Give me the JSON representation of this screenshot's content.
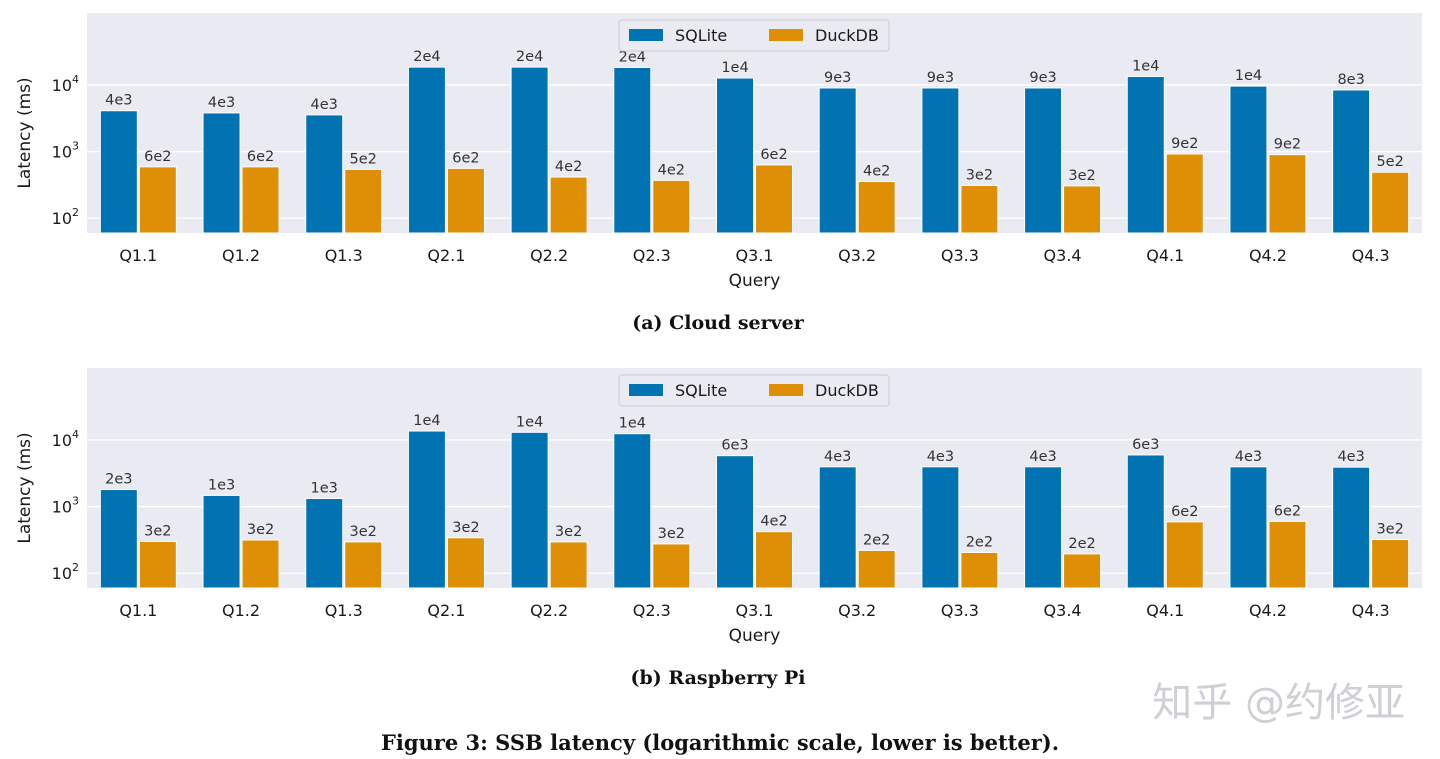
{
  "figure_caption": "Figure 3: SSB latency (logarithmic scale, lower is better).",
  "watermark": "知乎 @约修亚",
  "colors": {
    "sqlite": "#0173b2",
    "duckdb": "#de8f05",
    "plot_bg": "#eaeaf2"
  },
  "chart_data": [
    {
      "type": "bar",
      "caption": "(a) Cloud server",
      "xlabel": "Query",
      "ylabel": "Latency (ms)",
      "yscale": "log",
      "ylim": [
        60,
        120000
      ],
      "yticks": [
        100,
        1000,
        10000
      ],
      "ytick_labels": [
        {
          "base": "10",
          "exp": "2"
        },
        {
          "base": "10",
          "exp": "3"
        },
        {
          "base": "10",
          "exp": "4"
        }
      ],
      "grid": true,
      "legend": "top-center",
      "categories": [
        "Q1.1",
        "Q1.2",
        "Q1.3",
        "Q2.1",
        "Q2.2",
        "Q2.3",
        "Q3.1",
        "Q3.2",
        "Q3.3",
        "Q3.4",
        "Q4.1",
        "Q4.2",
        "Q4.3"
      ],
      "series": [
        {
          "name": "SQLite",
          "values": [
            4100,
            3800,
            3550,
            18500,
            18500,
            18300,
            12700,
            9000,
            9000,
            9000,
            13400,
            9600,
            8400
          ],
          "labels": [
            "4e3",
            "4e3",
            "4e3",
            "2e4",
            "2e4",
            "2e4",
            "1e4",
            "9e3",
            "9e3",
            "9e3",
            "1e4",
            "1e4",
            "8e3"
          ]
        },
        {
          "name": "DuckDB",
          "values": [
            590,
            590,
            540,
            560,
            415,
            370,
            630,
            355,
            310,
            305,
            920,
            900,
            490
          ],
          "labels": [
            "6e2",
            "6e2",
            "5e2",
            "6e2",
            "4e2",
            "4e2",
            "6e2",
            "4e2",
            "3e2",
            "3e2",
            "9e2",
            "9e2",
            "5e2"
          ]
        }
      ]
    },
    {
      "type": "bar",
      "caption": "(b) Raspberry Pi",
      "xlabel": "Query",
      "ylabel": "Latency (ms)",
      "yscale": "log",
      "ylim": [
        60,
        120000
      ],
      "yticks": [
        100,
        1000,
        10000
      ],
      "ytick_labels": [
        {
          "base": "10",
          "exp": "2"
        },
        {
          "base": "10",
          "exp": "3"
        },
        {
          "base": "10",
          "exp": "4"
        }
      ],
      "grid": true,
      "legend": "top-center",
      "categories": [
        "Q1.1",
        "Q1.2",
        "Q1.3",
        "Q2.1",
        "Q2.2",
        "Q2.3",
        "Q3.1",
        "Q3.2",
        "Q3.3",
        "Q3.4",
        "Q4.1",
        "Q4.2",
        "Q4.3"
      ],
      "series": [
        {
          "name": "SQLite",
          "values": [
            1800,
            1470,
            1320,
            13600,
            13000,
            12400,
            5800,
            3950,
            3950,
            3950,
            5950,
            3950,
            3900
          ],
          "labels": [
            "2e3",
            "1e3",
            "1e3",
            "1e4",
            "1e4",
            "1e4",
            "6e3",
            "4e3",
            "4e3",
            "4e3",
            "6e3",
            "4e3",
            "4e3"
          ]
        },
        {
          "name": "DuckDB",
          "values": [
            300,
            315,
            295,
            340,
            295,
            275,
            420,
            220,
            205,
            195,
            590,
            600,
            320
          ],
          "labels": [
            "3e2",
            "3e2",
            "3e2",
            "3e2",
            "3e2",
            "3e2",
            "4e2",
            "2e2",
            "2e2",
            "2e2",
            "6e2",
            "6e2",
            "3e2"
          ]
        }
      ]
    }
  ]
}
